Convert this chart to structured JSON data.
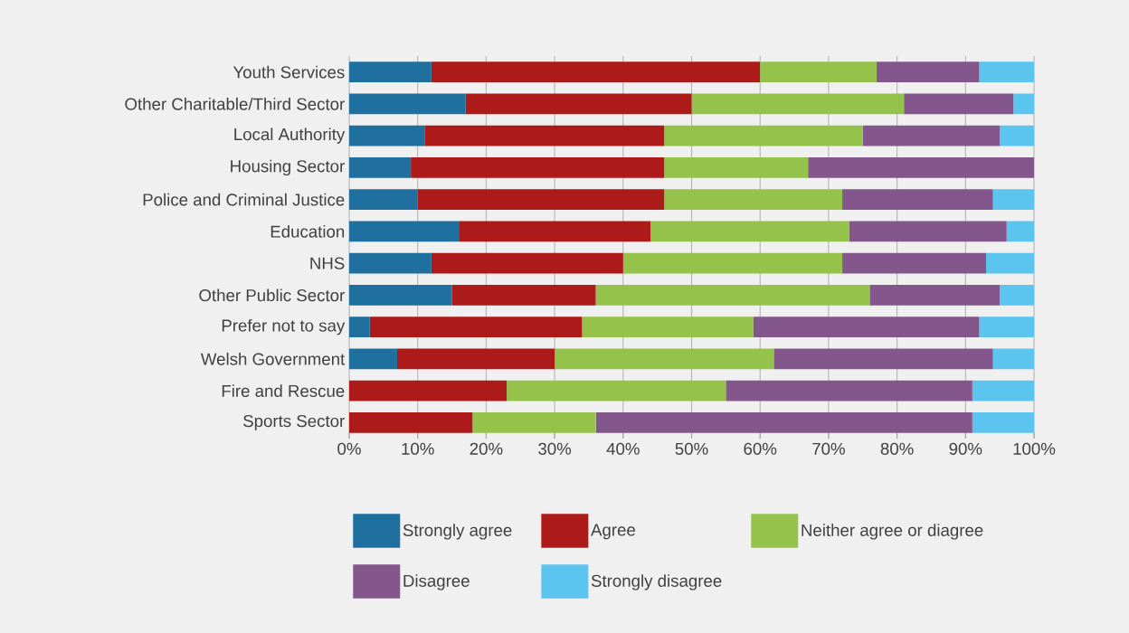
{
  "chart_data": {
    "type": "bar",
    "orientation": "horizontal",
    "stacked": true,
    "grid": "x",
    "legend": "bottom",
    "categories": [
      "Youth Services",
      "Other Charitable/Third Sector",
      "Local Authority",
      "Housing Sector",
      "Police and Criminal Justice",
      "Education",
      "NHS",
      "Other Public Sector",
      "Prefer not to say",
      "Welsh Government",
      "Fire and Rescue",
      "Sports Sector"
    ],
    "series": [
      {
        "name": "Strongly agree",
        "color": "#1f6f9f",
        "values": [
          12,
          17,
          11,
          9,
          10,
          16,
          12,
          15,
          3,
          7,
          0,
          0
        ]
      },
      {
        "name": "Agree",
        "color": "#ad1a1a",
        "values": [
          48,
          33,
          35,
          37,
          36,
          28,
          28,
          21,
          31,
          23,
          23,
          18
        ]
      },
      {
        "name": "Neither agree or diagree",
        "color": "#94c24b",
        "values": [
          17,
          31,
          29,
          21,
          26,
          29,
          32,
          40,
          25,
          32,
          32,
          18
        ]
      },
      {
        "name": "Disagree",
        "color": "#83578c",
        "values": [
          15,
          16,
          20,
          33,
          22,
          23,
          21,
          19,
          33,
          32,
          36,
          55
        ]
      },
      {
        "name": "Strongly disagree",
        "color": "#5bc5f0",
        "values": [
          8,
          3,
          5,
          0,
          6,
          4,
          7,
          5,
          8,
          6,
          9,
          9
        ]
      }
    ],
    "xlim": [
      0,
      100
    ],
    "xticks": [
      {
        "value": 0,
        "label": "0%"
      },
      {
        "value": 10,
        "label": "10%"
      },
      {
        "value": 20,
        "label": "20%"
      },
      {
        "value": 30,
        "label": "30%"
      },
      {
        "value": 40,
        "label": "40%"
      },
      {
        "value": 50,
        "label": "50%"
      },
      {
        "value": 60,
        "label": "60%"
      },
      {
        "value": 70,
        "label": "70%"
      },
      {
        "value": 80,
        "label": "80%"
      },
      {
        "value": 90,
        "label": "90%"
      },
      {
        "value": 100,
        "label": "100%"
      }
    ]
  }
}
